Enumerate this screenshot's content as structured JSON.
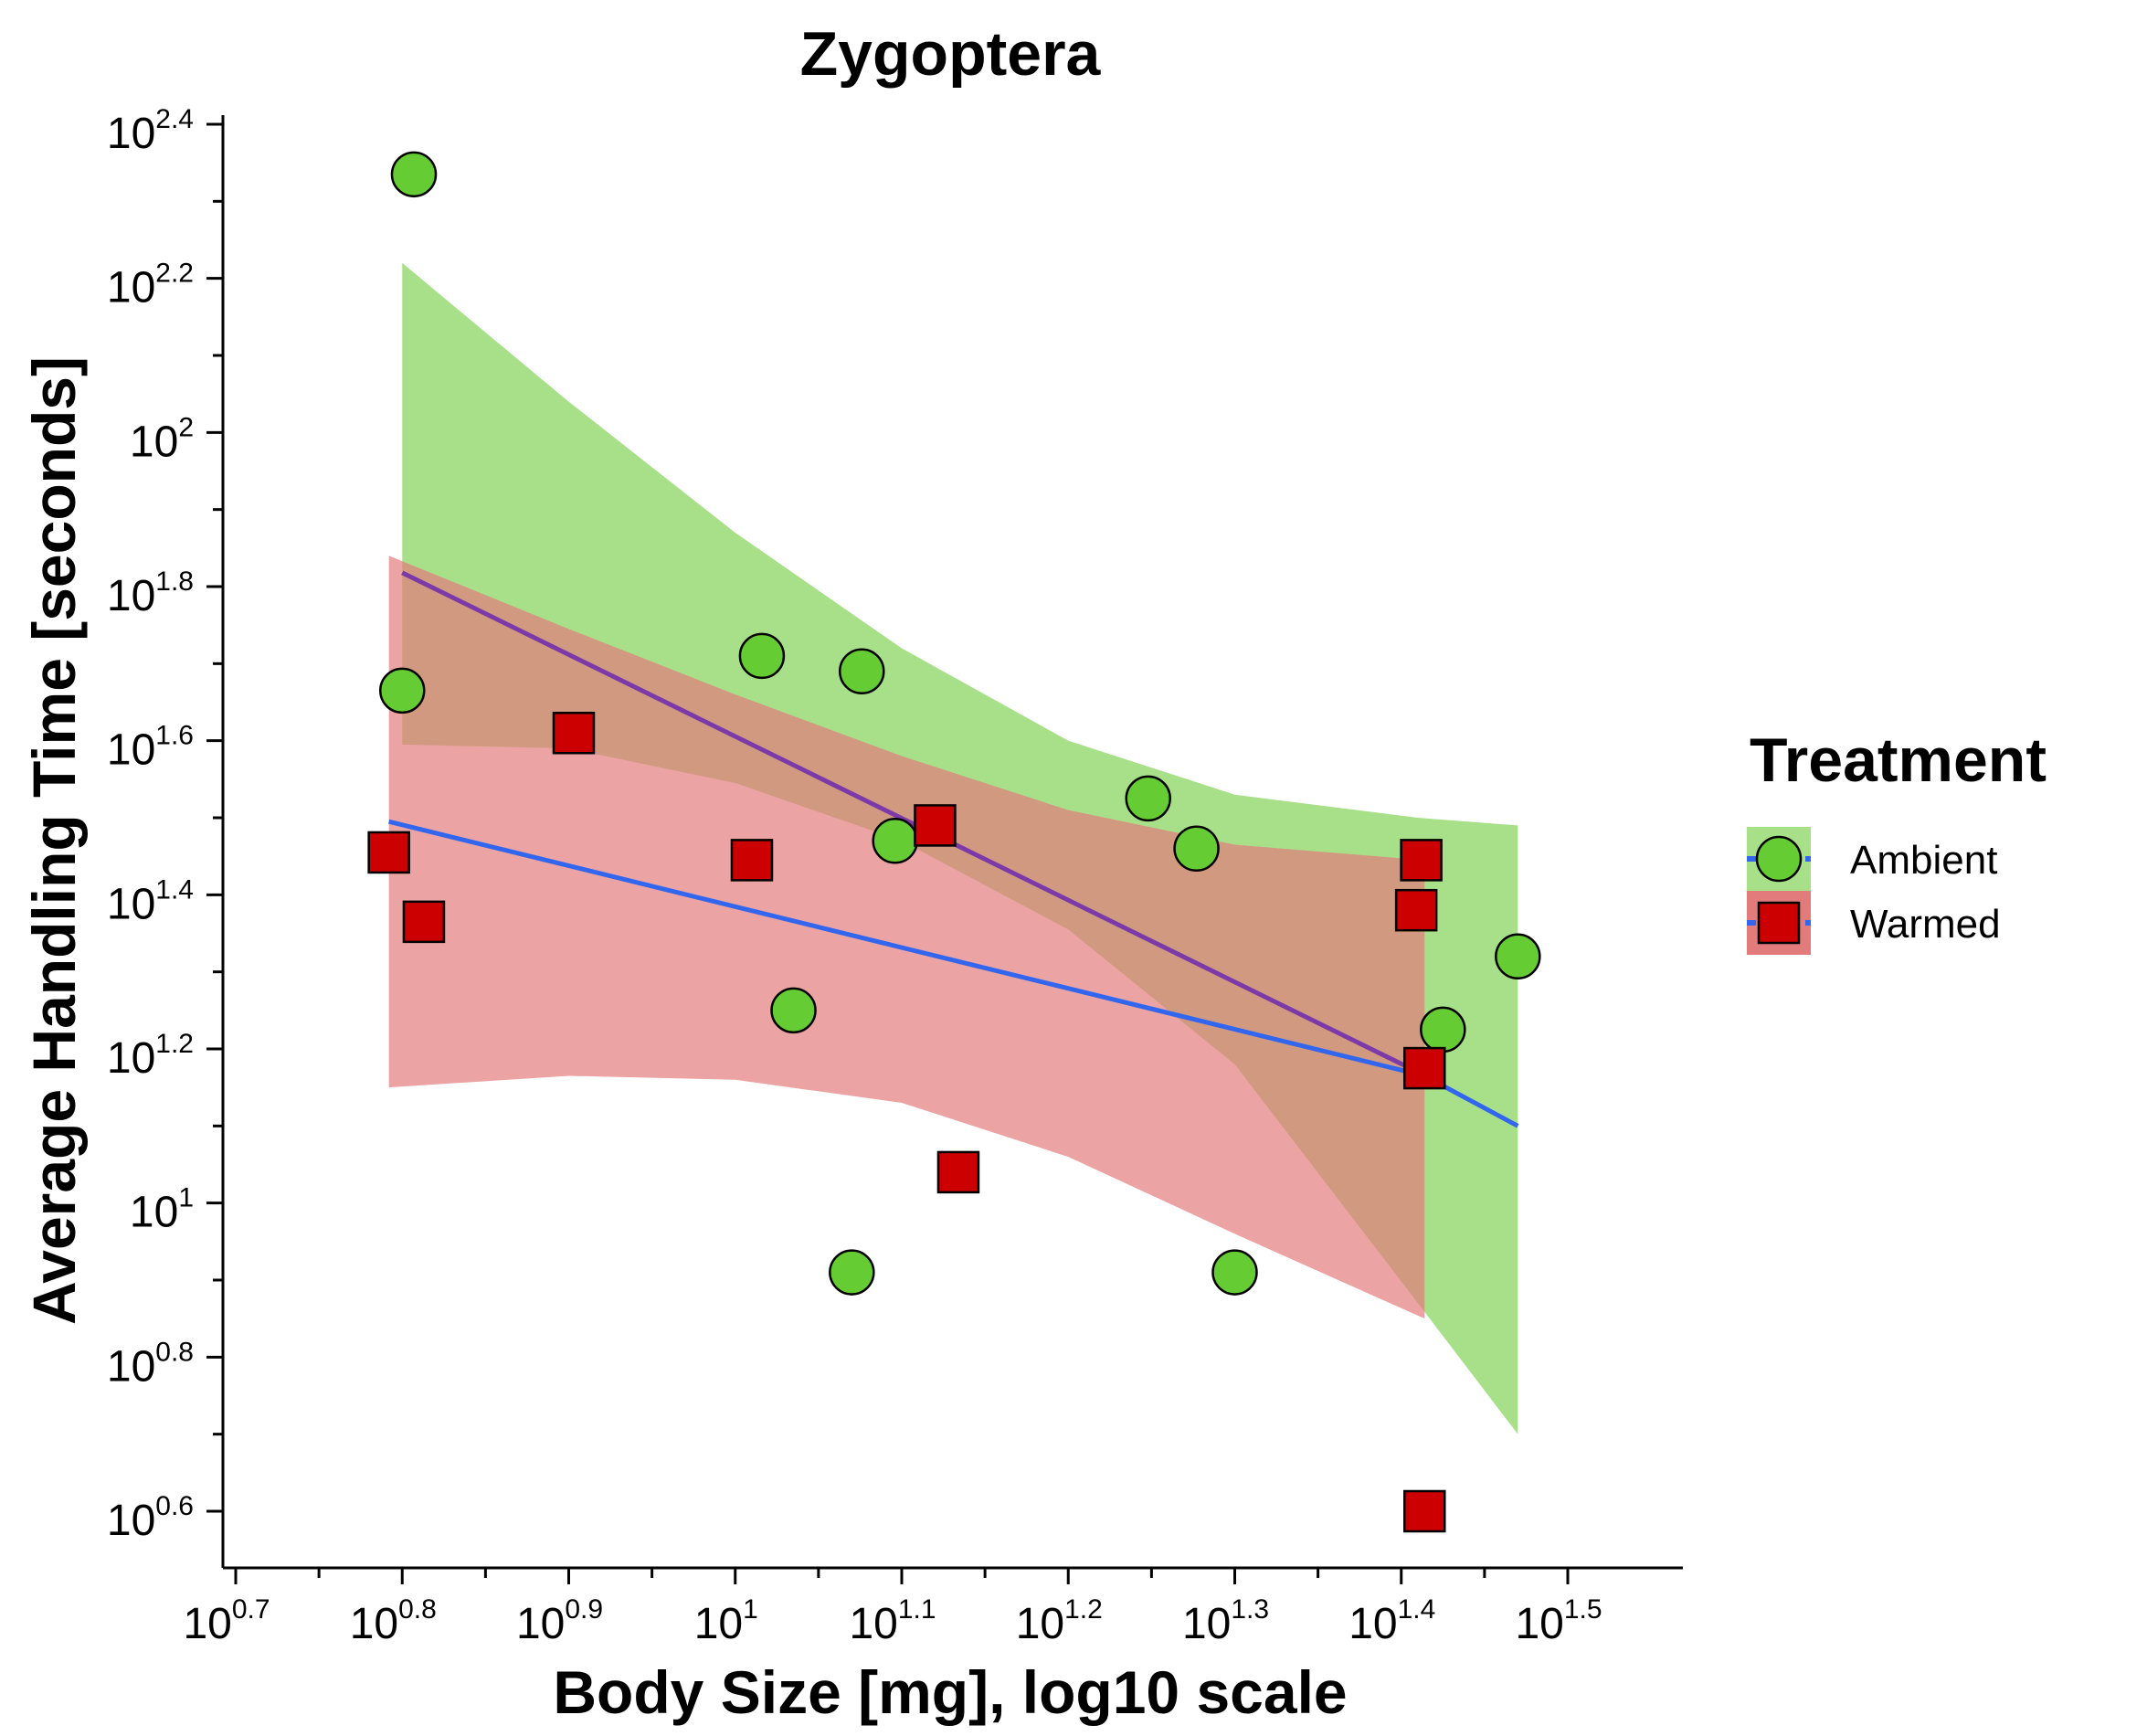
{
  "chart_data": {
    "type": "scatter",
    "title": "Zygoptera",
    "xlabel": "Body Size [mg], log10 scale",
    "ylabel": "Average Handling Time [seconds]",
    "x_scale": "log10",
    "y_scale": "log10",
    "xlim_log10": [
      0.69,
      1.58
    ],
    "ylim_log10": [
      0.52,
      2.42
    ],
    "x_ticks": [
      {
        "base": "10",
        "exp": "0.7",
        "log10": 0.7
      },
      {
        "base": "10",
        "exp": "0.8",
        "log10": 0.8
      },
      {
        "base": "10",
        "exp": "0.9",
        "log10": 0.9
      },
      {
        "base": "10",
        "exp": "1",
        "log10": 1.0
      },
      {
        "base": "10",
        "exp": "1.1",
        "log10": 1.1
      },
      {
        "base": "10",
        "exp": "1.2",
        "log10": 1.2
      },
      {
        "base": "10",
        "exp": "1.3",
        "log10": 1.3
      },
      {
        "base": "10",
        "exp": "1.4",
        "log10": 1.4
      },
      {
        "base": "10",
        "exp": "1.5",
        "log10": 1.5
      }
    ],
    "y_ticks": [
      {
        "base": "10",
        "exp": "0.6",
        "log10": 0.6
      },
      {
        "base": "10",
        "exp": "0.8",
        "log10": 0.8
      },
      {
        "base": "10",
        "exp": "1",
        "log10": 1.0
      },
      {
        "base": "10",
        "exp": "1.2",
        "log10": 1.2
      },
      {
        "base": "10",
        "exp": "1.4",
        "log10": 1.4
      },
      {
        "base": "10",
        "exp": "1.6",
        "log10": 1.6
      },
      {
        "base": "10",
        "exp": "1.8",
        "log10": 1.8
      },
      {
        "base": "10",
        "exp": "2",
        "log10": 2.0
      },
      {
        "base": "10",
        "exp": "2.2",
        "log10": 2.2
      },
      {
        "base": "10",
        "exp": "2.4",
        "log10": 2.4
      }
    ],
    "legend": {
      "title": "Treatment",
      "placement": "right",
      "entries": [
        "Ambient",
        "Warmed"
      ]
    },
    "series": [
      {
        "name": "Ambient",
        "marker": "circle",
        "color": "#66cc33",
        "ribbon_color": "#a8e08a",
        "line_color": "#7c3aa8",
        "points_log10": [
          [
            0.807,
            2.335
          ],
          [
            0.8,
            1.665
          ],
          [
            1.016,
            1.71
          ],
          [
            1.076,
            1.69
          ],
          [
            1.096,
            1.47
          ],
          [
            1.035,
            1.25
          ],
          [
            1.07,
            0.91
          ],
          [
            1.248,
            1.525
          ],
          [
            1.277,
            1.46
          ],
          [
            1.3,
            0.91
          ],
          [
            1.425,
            1.225
          ],
          [
            1.47,
            1.32
          ]
        ],
        "fit_log10": [
          [
            0.8,
            1.818
          ],
          [
            1.41,
            1.17
          ]
        ],
        "ci_log10": [
          [
            0.8,
            2.22,
            1.595
          ],
          [
            0.9,
            2.04,
            1.59
          ],
          [
            1.0,
            1.87,
            1.545
          ],
          [
            1.1,
            1.72,
            1.47
          ],
          [
            1.2,
            1.6,
            1.355
          ],
          [
            1.3,
            1.53,
            1.18
          ],
          [
            1.41,
            1.5,
            0.87
          ],
          [
            1.47,
            1.49,
            0.7
          ]
        ]
      },
      {
        "name": "Warmed",
        "marker": "square",
        "color": "#cc0000",
        "ribbon_color": "#e27c7c",
        "line_color": "#3366ee",
        "points_log10": [
          [
            0.792,
            1.455
          ],
          [
            0.813,
            1.365
          ],
          [
            0.903,
            1.61
          ],
          [
            1.01,
            1.445
          ],
          [
            1.12,
            1.49
          ],
          [
            1.134,
            1.04
          ],
          [
            1.409,
            1.38
          ],
          [
            1.412,
            1.445
          ],
          [
            1.414,
            1.175
          ],
          [
            1.414,
            0.6
          ]
        ],
        "fit_log10": [
          [
            0.792,
            1.495
          ],
          [
            1.414,
            1.165
          ],
          [
            1.47,
            1.1
          ]
        ],
        "ci_log10": [
          [
            0.792,
            1.84,
            1.15
          ],
          [
            0.9,
            1.745,
            1.165
          ],
          [
            1.0,
            1.66,
            1.16
          ],
          [
            1.1,
            1.58,
            1.13
          ],
          [
            1.2,
            1.51,
            1.06
          ],
          [
            1.3,
            1.465,
            0.96
          ],
          [
            1.414,
            1.445,
            0.85
          ]
        ]
      }
    ]
  }
}
